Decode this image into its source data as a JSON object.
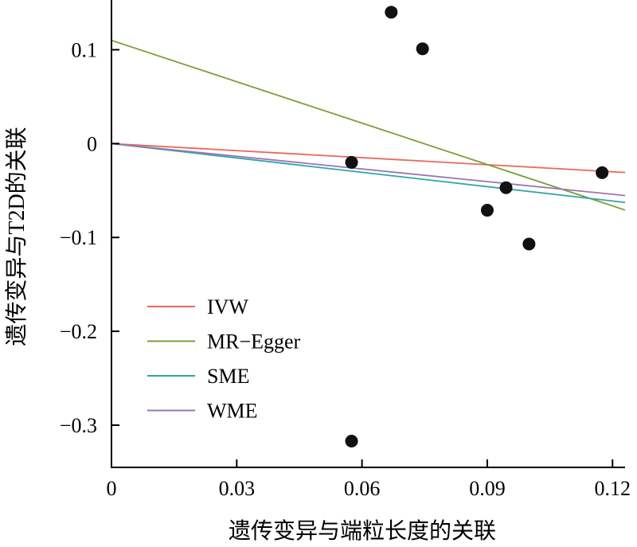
{
  "chart_data": {
    "type": "scatter",
    "xlabel": "遗传变异与端粒长度的关联",
    "ylabel": "遗传变异与T2D的关联",
    "xlim": [
      0,
      0.123
    ],
    "ylim": [
      -0.345,
      0.153
    ],
    "x_ticks": [
      0,
      0.03,
      0.06,
      0.09,
      0.12
    ],
    "x_tick_labels": [
      "0",
      "0.03",
      "0.06",
      "0.09",
      "0.12"
    ],
    "y_ticks": [
      0.1,
      0,
      -0.1,
      -0.2,
      -0.3
    ],
    "y_tick_labels": [
      "0.1",
      "0",
      "−0.1",
      "−0.2",
      "−0.3"
    ],
    "points": [
      {
        "x": 0.0575,
        "y": -0.02
      },
      {
        "x": 0.0575,
        "y": -0.317
      },
      {
        "x": 0.067,
        "y": 0.14
      },
      {
        "x": 0.0745,
        "y": 0.101
      },
      {
        "x": 0.09,
        "y": -0.071
      },
      {
        "x": 0.0945,
        "y": -0.047
      },
      {
        "x": 0.1,
        "y": -0.107
      },
      {
        "x": 0.1175,
        "y": -0.031
      }
    ],
    "lines": [
      {
        "name": "IVW",
        "color": "#e8685b",
        "intercept": 0.0,
        "slope": -0.25
      },
      {
        "name": "MR-Egger",
        "color": "#78a030",
        "intercept": 0.11,
        "slope": -1.47
      },
      {
        "name": "SME",
        "color": "#2fa6a8",
        "intercept": 0.0,
        "slope": -0.51
      },
      {
        "name": "WME",
        "color": "#9a76b2",
        "intercept": 0.0,
        "slope": -0.45
      }
    ],
    "legend": {
      "position": "bottom-left",
      "entries": [
        "IVW",
        "MR−Egger",
        "SME",
        "WME"
      ]
    },
    "grid": false
  }
}
